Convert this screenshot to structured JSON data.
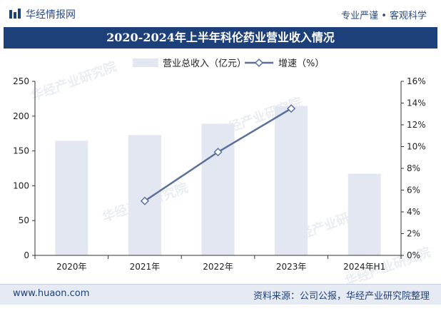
{
  "header": {
    "brand": "华经情报网",
    "slogan": "专业严谨 • 客观科学",
    "title": "2020-2024年上半年科伦药业营业收入情况"
  },
  "watermark": "华经产业研究院",
  "footer": {
    "site": "www.huaon.com",
    "source": "资料来源：公司公报，华经产业研究院整理"
  },
  "colors": {
    "bar": "#e3e7f2",
    "line": "#5a6f9c",
    "title_bg": "#1d3f7a"
  },
  "chart_data": {
    "type": "bar+line",
    "title": "2020-2024年上半年科伦药业营业收入情况",
    "categories": [
      "2020年",
      "2021年",
      "2022年",
      "2023年",
      "2024年H1"
    ],
    "series": [
      {
        "name": "营业总收入（亿元）",
        "type": "bar",
        "axis": "left",
        "values": [
          164.6,
          172.8,
          189.1,
          214.5,
          117.3
        ]
      },
      {
        "name": "增速（%）",
        "type": "line",
        "axis": "right",
        "values": [
          null,
          5.0,
          9.5,
          13.5,
          null
        ]
      }
    ],
    "y_left": {
      "min": 0,
      "max": 250,
      "ticks": [
        "0",
        "50",
        "100",
        "150",
        "200",
        "250"
      ]
    },
    "y_right": {
      "min": 0,
      "max": 16,
      "ticks": [
        "0%",
        "2%",
        "4%",
        "6%",
        "8%",
        "10%",
        "12%",
        "14%",
        "16%"
      ]
    },
    "legend": [
      "营业总收入（亿元）",
      "增速（%）"
    ]
  }
}
